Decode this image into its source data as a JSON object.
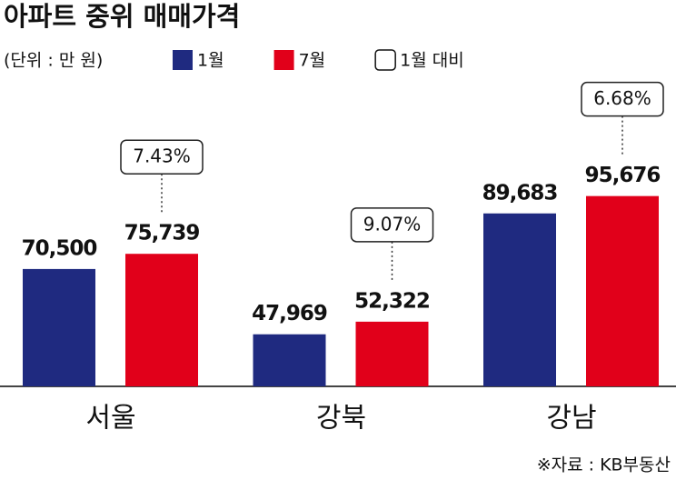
{
  "chart_data": {
    "type": "bar",
    "title": "아파트 중위 매매가격",
    "unit": "(단위 : 만 원)",
    "source": "※자료 : KB부동산",
    "categories": [
      "서울",
      "강북",
      "강남"
    ],
    "series": [
      {
        "name": "1월",
        "color": "#1f2a80",
        "values": [
          70500,
          47969,
          89683
        ],
        "value_labels": [
          "70,500",
          "47,969",
          "89,683"
        ]
      },
      {
        "name": "7월",
        "color": "#e1001a",
        "values": [
          75739,
          52322,
          95676
        ],
        "value_labels": [
          "75,739",
          "52,322",
          "95,676"
        ]
      }
    ],
    "change": {
      "name": "1월 대비",
      "values": [
        7.43,
        9.07,
        6.68
      ],
      "value_labels": [
        "7.43%",
        "9.07%",
        "6.68%"
      ]
    },
    "ylim": [
      30000,
      110000
    ]
  }
}
